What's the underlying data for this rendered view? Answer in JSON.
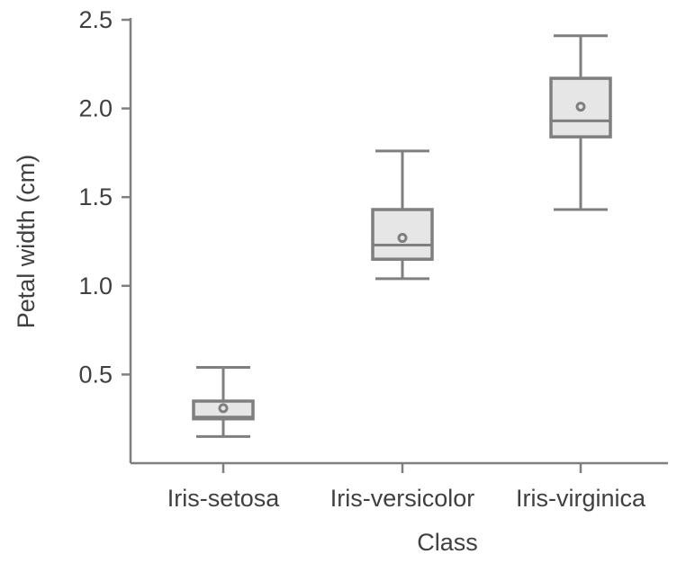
{
  "chart_data": {
    "type": "box",
    "xlabel": "Class",
    "ylabel": "Petal width (cm)",
    "categories": [
      "Iris-setosa",
      "Iris-versicolor",
      "Iris-virginica"
    ],
    "ylim": [
      0.0,
      2.5
    ],
    "yticks": [
      0.5,
      1.0,
      1.5,
      2.0,
      2.5
    ],
    "ytick_labels": [
      "0.5",
      "1.0",
      "1.5",
      "2.0",
      "2.5"
    ],
    "boxes": [
      {
        "category": "Iris-setosa",
        "min": 0.15,
        "q1": 0.25,
        "median": 0.26,
        "q3": 0.35,
        "max": 0.54,
        "mean": 0.31
      },
      {
        "category": "Iris-versicolor",
        "min": 1.04,
        "q1": 1.15,
        "median": 1.23,
        "q3": 1.43,
        "max": 1.76,
        "mean": 1.27
      },
      {
        "category": "Iris-virginica",
        "min": 1.43,
        "q1": 1.84,
        "median": 1.93,
        "q3": 2.17,
        "max": 2.41,
        "mean": 2.01
      }
    ],
    "grid": false,
    "legend": "none",
    "colors": {
      "box_fill": "#e6e6e6",
      "stroke": "#7f7f7f",
      "text": "#404040"
    }
  }
}
